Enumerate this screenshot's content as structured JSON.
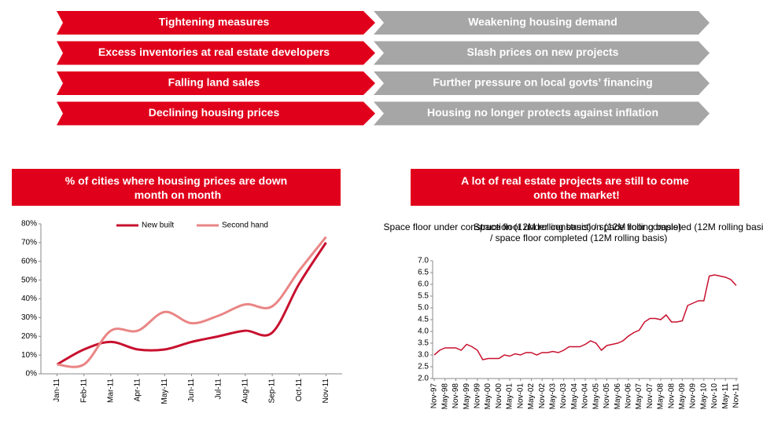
{
  "flow": {
    "rows": [
      {
        "left": "Tightening measures",
        "right": "Weakening housing demand"
      },
      {
        "left": "Excess inventories at real estate developers",
        "right": "Slash prices on new projects"
      },
      {
        "left": "Falling land sales",
        "right": "Further pressure on local govts’ financing"
      },
      {
        "left": "Declining housing prices",
        "right": "Housing no longer protects against inflation"
      }
    ]
  },
  "chart_data": [
    {
      "type": "line",
      "title": "% of cities where housing prices are down month on month",
      "categories": [
        "Jan-11",
        "Feb-11",
        "Mar-11",
        "Apr-11",
        "May-11",
        "Jun-11",
        "Jul-11",
        "Aug-11",
        "Sep-11",
        "Oct-11",
        "Nov-11"
      ],
      "series": [
        {
          "name": "New built",
          "color": "#c8102e",
          "values": [
            5,
            13,
            17,
            13,
            13,
            17,
            20,
            23,
            22,
            48,
            70
          ]
        },
        {
          "name": "Second hand",
          "color": "#ea8585",
          "values": [
            5,
            5,
            23,
            23,
            33,
            27,
            31,
            37,
            36,
            55,
            73
          ]
        }
      ],
      "ylim": [
        0,
        80
      ],
      "yticks": [
        {
          "value": 0,
          "label": "0%"
        },
        {
          "value": 10,
          "label": "10%"
        },
        {
          "value": 20,
          "label": "20%"
        },
        {
          "value": 30,
          "label": "30%"
        },
        {
          "value": 40,
          "label": "40%"
        },
        {
          "value": 50,
          "label": "50%"
        },
        {
          "value": 60,
          "label": "60%"
        },
        {
          "value": 70,
          "label": "70%"
        },
        {
          "value": 80,
          "label": "80%"
        }
      ],
      "smooth": true,
      "legend": "top"
    },
    {
      "type": "line",
      "title": "A lot of real estate projects are still to come onto the market!",
      "subtitle": "Space floor under construction (12M rolling basis) / space floor completed (12M rolling basis)",
      "categories": [
        "Nov-97",
        null,
        "May-98",
        null,
        "Nov-98",
        null,
        "May-99",
        null,
        "Nov-99",
        null,
        "May-00",
        null,
        "Nov-00",
        null,
        "May-01",
        null,
        "Nov-01",
        null,
        "May-02",
        null,
        "Nov-02",
        null,
        "May-03",
        null,
        "Nov-03",
        null,
        "May-04",
        null,
        "Nov-04",
        null,
        "May-05",
        null,
        "Nov-05",
        null,
        "May-06",
        null,
        "Nov-06",
        null,
        "May-07",
        null,
        "Nov-07",
        null,
        "May-08",
        null,
        "Nov-08",
        null,
        "May-09",
        null,
        "Nov-09",
        null,
        "May-10",
        null,
        "Nov-10",
        null,
        "May-11",
        null,
        "Nov-11"
      ],
      "values": [
        3.0,
        3.2,
        3.3,
        3.3,
        3.3,
        3.2,
        3.45,
        3.35,
        3.2,
        2.8,
        2.85,
        2.85,
        2.85,
        3.0,
        2.95,
        3.05,
        3.0,
        3.1,
        3.1,
        3.0,
        3.1,
        3.1,
        3.15,
        3.1,
        3.2,
        3.35,
        3.35,
        3.35,
        3.45,
        3.6,
        3.5,
        3.2,
        3.4,
        3.45,
        3.5,
        3.6,
        3.8,
        3.95,
        4.05,
        4.4,
        4.55,
        4.55,
        4.5,
        4.7,
        4.4,
        4.4,
        4.45,
        5.1,
        5.2,
        5.3,
        5.3,
        6.35,
        6.4,
        6.35,
        6.3,
        6.2,
        5.95
      ],
      "color": "#c8102e",
      "ylim": [
        2.0,
        7.0
      ],
      "yticks": [
        {
          "value": 2,
          "label": "2.0"
        },
        2.5,
        {
          "value": 3,
          "label": "3.0"
        },
        3.5,
        {
          "value": 4,
          "label": "4.0"
        },
        4.5,
        {
          "value": 5,
          "label": "5.0"
        },
        5.5,
        {
          "value": 6,
          "label": "6.0"
        },
        6.5,
        {
          "value": 7,
          "label": "7.0"
        }
      ]
    }
  ]
}
